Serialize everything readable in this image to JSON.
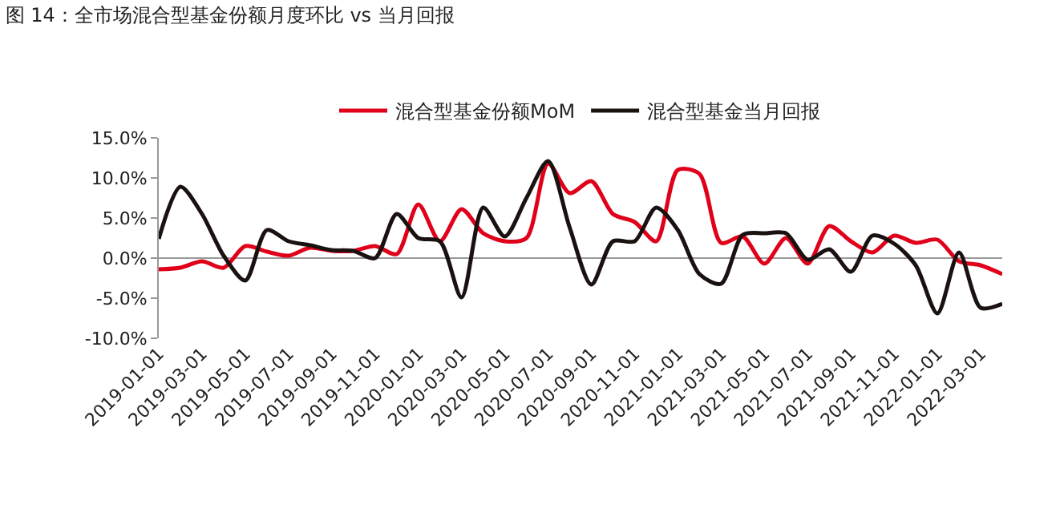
{
  "chart_data": {
    "type": "line",
    "title": "图 14：全市场混合型基金份额月度环比 vs 当月回报",
    "categories": [
      "2019-01-01",
      null,
      "2019-03-01",
      null,
      "2019-05-01",
      null,
      "2019-07-01",
      null,
      "2019-09-01",
      null,
      "2019-11-01",
      null,
      "2020-01-01",
      null,
      "2020-03-01",
      null,
      "2020-05-01",
      null,
      "2020-07-01",
      null,
      "2020-09-01",
      null,
      "2020-11-01",
      null,
      "2021-01-01",
      null,
      "2021-03-01",
      null,
      "2021-05-01",
      null,
      "2021-07-01",
      null,
      "2021-09-01",
      null,
      "2021-11-01",
      null,
      "2022-01-01",
      null,
      "2022-03-01",
      null
    ],
    "series": [
      {
        "name": "混合型基金份额MoM",
        "color": "#e0001a",
        "values": [
          -1.4,
          -1.2,
          -0.4,
          -1.2,
          1.5,
          0.8,
          0.3,
          1.3,
          0.9,
          0.9,
          1.5,
          0.5,
          6.7,
          2.1,
          6.1,
          3.1,
          2.1,
          2.5,
          11.8,
          8.1,
          9.6,
          5.5,
          4.5,
          2.1,
          11.0,
          10.5,
          1.9,
          2.7,
          -0.7,
          2.5,
          -0.7,
          4.0,
          2.1,
          0.7,
          2.8,
          1.9,
          2.3,
          -0.4,
          -0.9,
          -2.0
        ]
      },
      {
        "name": "混合型基金当月回报",
        "color": "#1a1210",
        "values": [
          2.4,
          8.9,
          5.5,
          0.3,
          -2.8,
          3.5,
          2.1,
          1.6,
          1.0,
          0.9,
          0.0,
          5.5,
          2.5,
          2.1,
          -4.9,
          6.3,
          2.7,
          7.5,
          12.1,
          3.8,
          -3.3,
          2.1,
          2.1,
          6.3,
          3.5,
          -2.0,
          -3.2,
          2.9,
          3.1,
          3.1,
          -0.2,
          1.1,
          -1.7,
          2.8,
          1.8,
          -0.9,
          -6.9,
          0.7,
          -6.2,
          -5.7
        ]
      }
    ],
    "ylim": [
      -10,
      15
    ],
    "yticks": [
      {
        "value": -10,
        "label": "-10.0%"
      },
      {
        "value": -5,
        "label": "-5.0%"
      },
      {
        "value": 0,
        "label": "0.0%"
      },
      {
        "value": 5,
        "label": "5.0%"
      },
      {
        "value": 10,
        "label": "10.0%"
      },
      {
        "value": 15,
        "label": "15.0%"
      }
    ],
    "ref_lines": [
      {
        "axis": "y",
        "value": 0,
        "color": "#999999"
      }
    ],
    "legend": "top",
    "grid": false,
    "marker": "none",
    "line_style": "solid"
  }
}
